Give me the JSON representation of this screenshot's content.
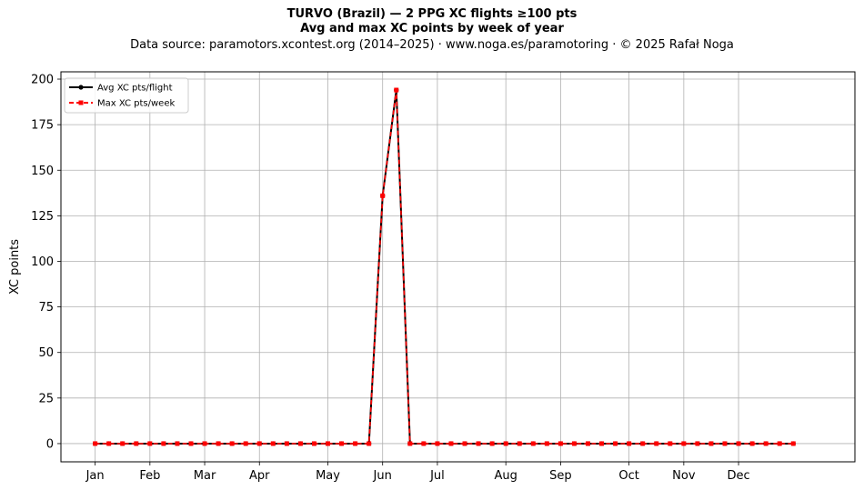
{
  "figure": {
    "title_line1": "TURVO (Brazil)  —  2 PPG XC flights ≥100 pts",
    "title_line2": "Avg and max XC points by week of year",
    "title_line3": "Data source: paramotors.xcontest.org (2014–2025)  ·  www.noga.es/paramotoring  ·  © 2025 Rafał Noga"
  },
  "chart_data": {
    "type": "line",
    "title": "TURVO (Brazil)  —  2 PPG XC flights ≥100 pts",
    "subtitle": "Avg and max XC points by week of year",
    "xlabel": "",
    "ylabel": "XC points",
    "x_axis_unit": "week of year",
    "xlim": [
      -2.5,
      55.5
    ],
    "ylim": [
      -10,
      204
    ],
    "x_ticks": [
      {
        "label": "Jan",
        "week": 0
      },
      {
        "label": "Feb",
        "week": 4
      },
      {
        "label": "Mar",
        "week": 8
      },
      {
        "label": "Apr",
        "week": 12
      },
      {
        "label": "May",
        "week": 17
      },
      {
        "label": "Jun",
        "week": 21
      },
      {
        "label": "Jul",
        "week": 25
      },
      {
        "label": "Aug",
        "week": 30
      },
      {
        "label": "Sep",
        "week": 34
      },
      {
        "label": "Oct",
        "week": 39
      },
      {
        "label": "Nov",
        "week": 43
      },
      {
        "label": "Dec",
        "week": 47
      }
    ],
    "y_ticks": [
      0,
      25,
      50,
      75,
      100,
      125,
      150,
      175,
      200
    ],
    "grid": true,
    "legend_position": "top-left",
    "x": [
      0,
      1,
      2,
      3,
      4,
      5,
      6,
      7,
      8,
      9,
      10,
      11,
      12,
      13,
      14,
      15,
      16,
      17,
      18,
      19,
      20,
      21,
      22,
      23,
      24,
      25,
      26,
      27,
      28,
      29,
      30,
      31,
      32,
      33,
      34,
      35,
      36,
      37,
      38,
      39,
      40,
      41,
      42,
      43,
      44,
      45,
      46,
      47,
      48,
      49,
      50,
      51
    ],
    "series": [
      {
        "name": "Avg XC pts/flight",
        "color": "#000000",
        "marker": "circle",
        "linestyle": "solid",
        "values": [
          0,
          0,
          0,
          0,
          0,
          0,
          0,
          0,
          0,
          0,
          0,
          0,
          0,
          0,
          0,
          0,
          0,
          0,
          0,
          0,
          0,
          136,
          194,
          0,
          0,
          0,
          0,
          0,
          0,
          0,
          0,
          0,
          0,
          0,
          0,
          0,
          0,
          0,
          0,
          0,
          0,
          0,
          0,
          0,
          0,
          0,
          0,
          0,
          0,
          0,
          0,
          0
        ]
      },
      {
        "name": "Max XC pts/week",
        "color": "#ff0000",
        "marker": "square",
        "linestyle": "dashed",
        "values": [
          0,
          0,
          0,
          0,
          0,
          0,
          0,
          0,
          0,
          0,
          0,
          0,
          0,
          0,
          0,
          0,
          0,
          0,
          0,
          0,
          0,
          136,
          194,
          0,
          0,
          0,
          0,
          0,
          0,
          0,
          0,
          0,
          0,
          0,
          0,
          0,
          0,
          0,
          0,
          0,
          0,
          0,
          0,
          0,
          0,
          0,
          0,
          0,
          0,
          0,
          0,
          0
        ]
      }
    ]
  }
}
